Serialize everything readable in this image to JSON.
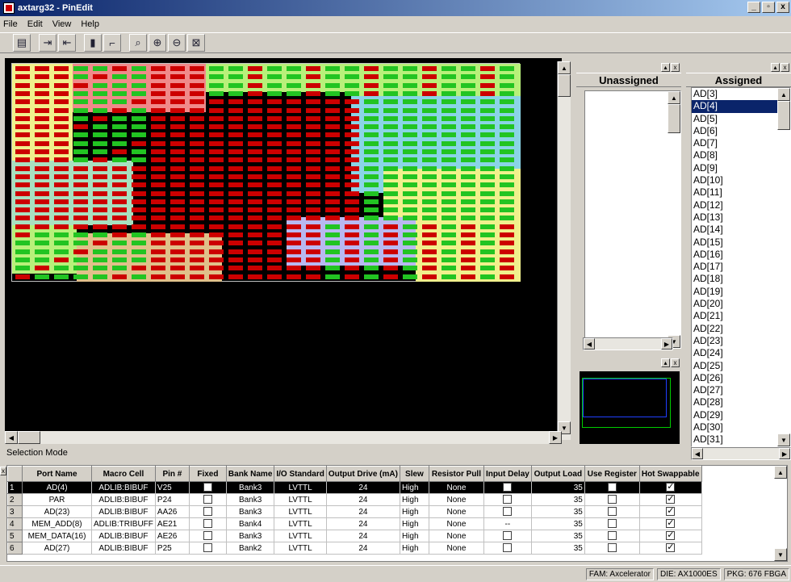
{
  "window": {
    "title": "axtarg32 - PinEdit"
  },
  "menu": [
    "File",
    "Edit",
    "View",
    "Help"
  ],
  "toolbar": [
    "db-icon",
    "import-icon",
    "export-icon",
    "pin-lock-icon",
    "pin-unlock-icon",
    "zoom-select-icon",
    "zoom-in-icon",
    "zoom-out-icon",
    "zoom-fit-icon"
  ],
  "mode": "Selection Mode",
  "unassigned": {
    "title": "Unassigned",
    "items": []
  },
  "assigned": {
    "title": "Assigned",
    "selected": "AD[4]",
    "items": [
      "AD[3]",
      "AD[4]",
      "AD[5]",
      "AD[6]",
      "AD[7]",
      "AD[8]",
      "AD[9]",
      "AD[10]",
      "AD[11]",
      "AD[12]",
      "AD[13]",
      "AD[14]",
      "AD[15]",
      "AD[16]",
      "AD[17]",
      "AD[18]",
      "AD[19]",
      "AD[20]",
      "AD[21]",
      "AD[22]",
      "AD[23]",
      "AD[24]",
      "AD[25]",
      "AD[26]",
      "AD[27]",
      "AD[28]",
      "AD[29]",
      "AD[30]",
      "AD[31]"
    ]
  },
  "grid": {
    "columns": [
      "Port Name",
      "Macro Cell",
      "Pin #",
      "Fixed",
      "Bank Name",
      "I/O Standard",
      "Output Drive (mA)",
      "Slew",
      "Resistor Pull",
      "Input Delay",
      "Output Load",
      "Use Register",
      "Hot Swappable"
    ],
    "rows": [
      {
        "n": "1",
        "port": "AD(4)",
        "macro": "ADLIB:BIBUF",
        "pin": "V25",
        "fixed": false,
        "bank": "Bank3",
        "io": "LVTTL",
        "drive": "24",
        "slew": "High",
        "pull": "None",
        "delay": "box",
        "load": "35",
        "reg": false,
        "hot": true,
        "selected": true
      },
      {
        "n": "2",
        "port": "PAR",
        "macro": "ADLIB:BIBUF",
        "pin": "P24",
        "fixed": false,
        "bank": "Bank3",
        "io": "LVTTL",
        "drive": "24",
        "slew": "High",
        "pull": "None",
        "delay": "box",
        "load": "35",
        "reg": false,
        "hot": true
      },
      {
        "n": "3",
        "port": "AD(23)",
        "macro": "ADLIB:BIBUF",
        "pin": "AA26",
        "fixed": false,
        "bank": "Bank3",
        "io": "LVTTL",
        "drive": "24",
        "slew": "High",
        "pull": "None",
        "delay": "box",
        "load": "35",
        "reg": false,
        "hot": true
      },
      {
        "n": "4",
        "port": "MEM_ADD(8)",
        "macro": "ADLIB:TRIBUFF",
        "pin": "AE21",
        "fixed": false,
        "bank": "Bank4",
        "io": "LVTTL",
        "drive": "24",
        "slew": "High",
        "pull": "None",
        "delay": "--",
        "load": "35",
        "reg": false,
        "hot": true
      },
      {
        "n": "5",
        "port": "MEM_DATA(16)",
        "macro": "ADLIB:BIBUF",
        "pin": "AE26",
        "fixed": false,
        "bank": "Bank3",
        "io": "LVTTL",
        "drive": "24",
        "slew": "High",
        "pull": "None",
        "delay": "box",
        "load": "35",
        "reg": false,
        "hot": true
      },
      {
        "n": "6",
        "port": "AD(27)",
        "macro": "ADLIB:BIBUF",
        "pin": "P25",
        "fixed": false,
        "bank": "Bank2",
        "io": "LVTTL",
        "drive": "24",
        "slew": "High",
        "pull": "None",
        "delay": "box",
        "load": "35",
        "reg": false,
        "hot": true
      }
    ]
  },
  "status": {
    "fam": "FAM: Axcelerator",
    "die": "DIE: AX1000ES",
    "pkg": "PKG: 676 FBGA"
  },
  "colors": {
    "red": "#cc0000",
    "green": "#22c422",
    "pink": "#f08a8a",
    "lightgreen": "#b8f07a",
    "lightyellow": "#f0f08c",
    "cyan": "#8ad4e6",
    "mint": "#a8e0c0",
    "tan": "#e0c08a",
    "lavender": "#b8b8f0"
  }
}
